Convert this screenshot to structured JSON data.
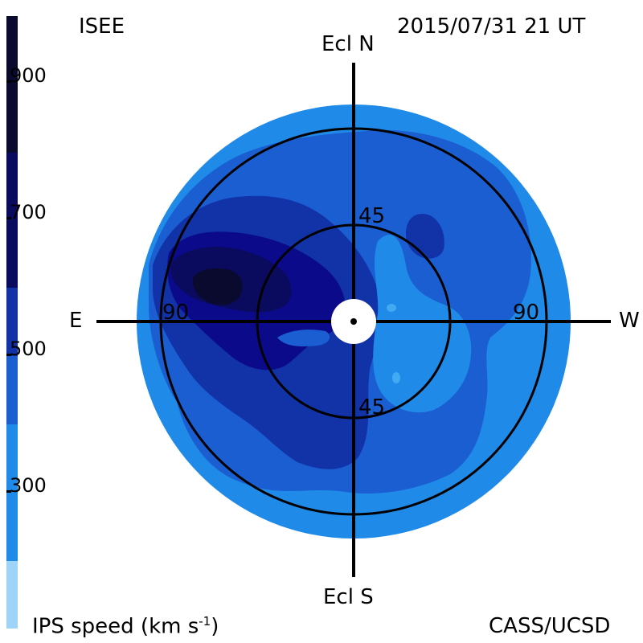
{
  "header": {
    "org_label": "ISEE",
    "timestamp": "2015/07/31 21 UT"
  },
  "footer": {
    "colorbar_title": "IPS speed (km s",
    "colorbar_title_exp": "-1",
    "colorbar_title_end": ")",
    "credit": "CASS/UCSD"
  },
  "colorbar": {
    "levels": [
      {
        "color": "#0a0a2e"
      },
      {
        "color": "#0a0a5e"
      },
      {
        "color": "#0a0a8a"
      },
      {
        "color": "#1232a8"
      },
      {
        "color": "#1a5ed2"
      },
      {
        "color": "#1f8ae8"
      },
      {
        "color": "#42aaf2"
      },
      {
        "color": "#9dd4f8"
      }
    ],
    "tick_labels": [
      "900",
      "700",
      "500",
      "300"
    ]
  },
  "map": {
    "directions": {
      "north": "Ecl N",
      "south": "Ecl S",
      "east": "E",
      "west": "W"
    },
    "ring_labels": {
      "inner_north": "45",
      "inner_south": "45",
      "outer_east": "90",
      "outer_west": "90"
    },
    "colors": {
      "outer": "#1f8ae8",
      "mid": "#1a5ed2",
      "deep": "#1232a8",
      "darker": "#0a0a8a",
      "darkest": "#0a0a5e",
      "core": "#0a0a2e",
      "sun": "#ffffff"
    }
  }
}
